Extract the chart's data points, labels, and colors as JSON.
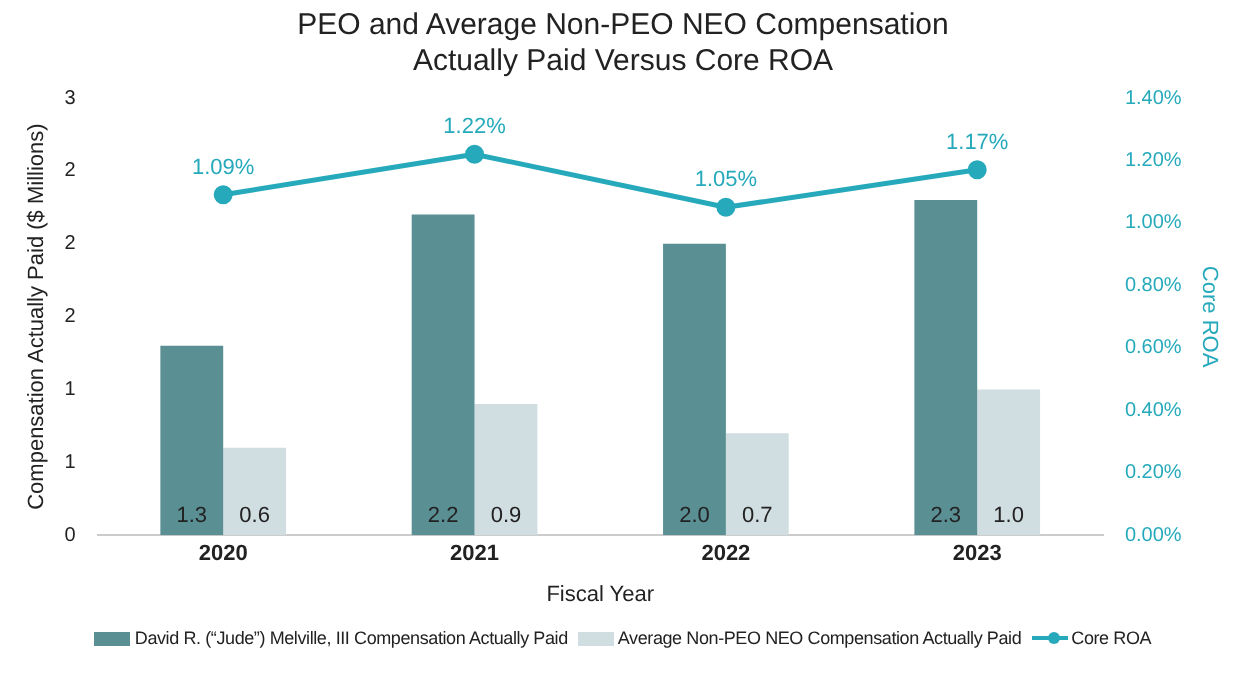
{
  "chart_data": {
    "type": "bar",
    "title": "PEO and Average Non-PEO NEO Compensation Actually Paid Versus Core ROA",
    "xlabel": "Fiscal Year",
    "ylabel": "Compensation Actually Paid ($ Millions)",
    "y2label": "Core ROA",
    "categories": [
      "2020",
      "2021",
      "2022",
      "2023"
    ],
    "series": [
      {
        "name": "David R. (“Jude”) Melville, III Compensation Actually Paid",
        "color": "#5a8f94",
        "values": [
          1.3,
          2.2,
          2.0,
          2.3
        ],
        "value_labels": [
          "1.3",
          "2.2",
          "2.0",
          "2.3"
        ]
      },
      {
        "name": "Average Non-PEO NEO Compensation Actually Paid",
        "color": "#d0dde1",
        "values": [
          0.6,
          0.9,
          0.7,
          1.0
        ],
        "value_labels": [
          "0.6",
          "0.9",
          "0.7",
          "1.0"
        ]
      },
      {
        "name": "Core ROA",
        "type": "line",
        "axis": "y2",
        "color": "#26aabb",
        "values": [
          1.09,
          1.22,
          1.05,
          1.17
        ],
        "value_labels": [
          "1.09%",
          "1.22%",
          "1.05%",
          "1.17%"
        ]
      }
    ],
    "ylim": [
      0,
      3
    ],
    "yticks": [
      0,
      {
        "value": 0.5,
        "label": "1"
      },
      1,
      {
        "value": 1.5,
        "label": "2"
      },
      2,
      {
        "value": 2.5,
        "label": "2"
      },
      3
    ],
    "y2lim": [
      0,
      1.4
    ],
    "y2ticks": [
      {
        "value": 0,
        "label": "0.00%"
      },
      {
        "value": 0.2,
        "label": "0.20%"
      },
      {
        "value": 0.4,
        "label": "0.40%"
      },
      {
        "value": 0.6,
        "label": "0.60%"
      },
      {
        "value": 0.8,
        "label": "0.80%"
      },
      {
        "value": 1.0,
        "label": "1.00%"
      },
      {
        "value": 1.2,
        "label": "1.20%"
      },
      {
        "value": 1.4,
        "label": "1.40%"
      }
    ],
    "grid": false,
    "legend": "bottom",
    "marker": "circle"
  }
}
